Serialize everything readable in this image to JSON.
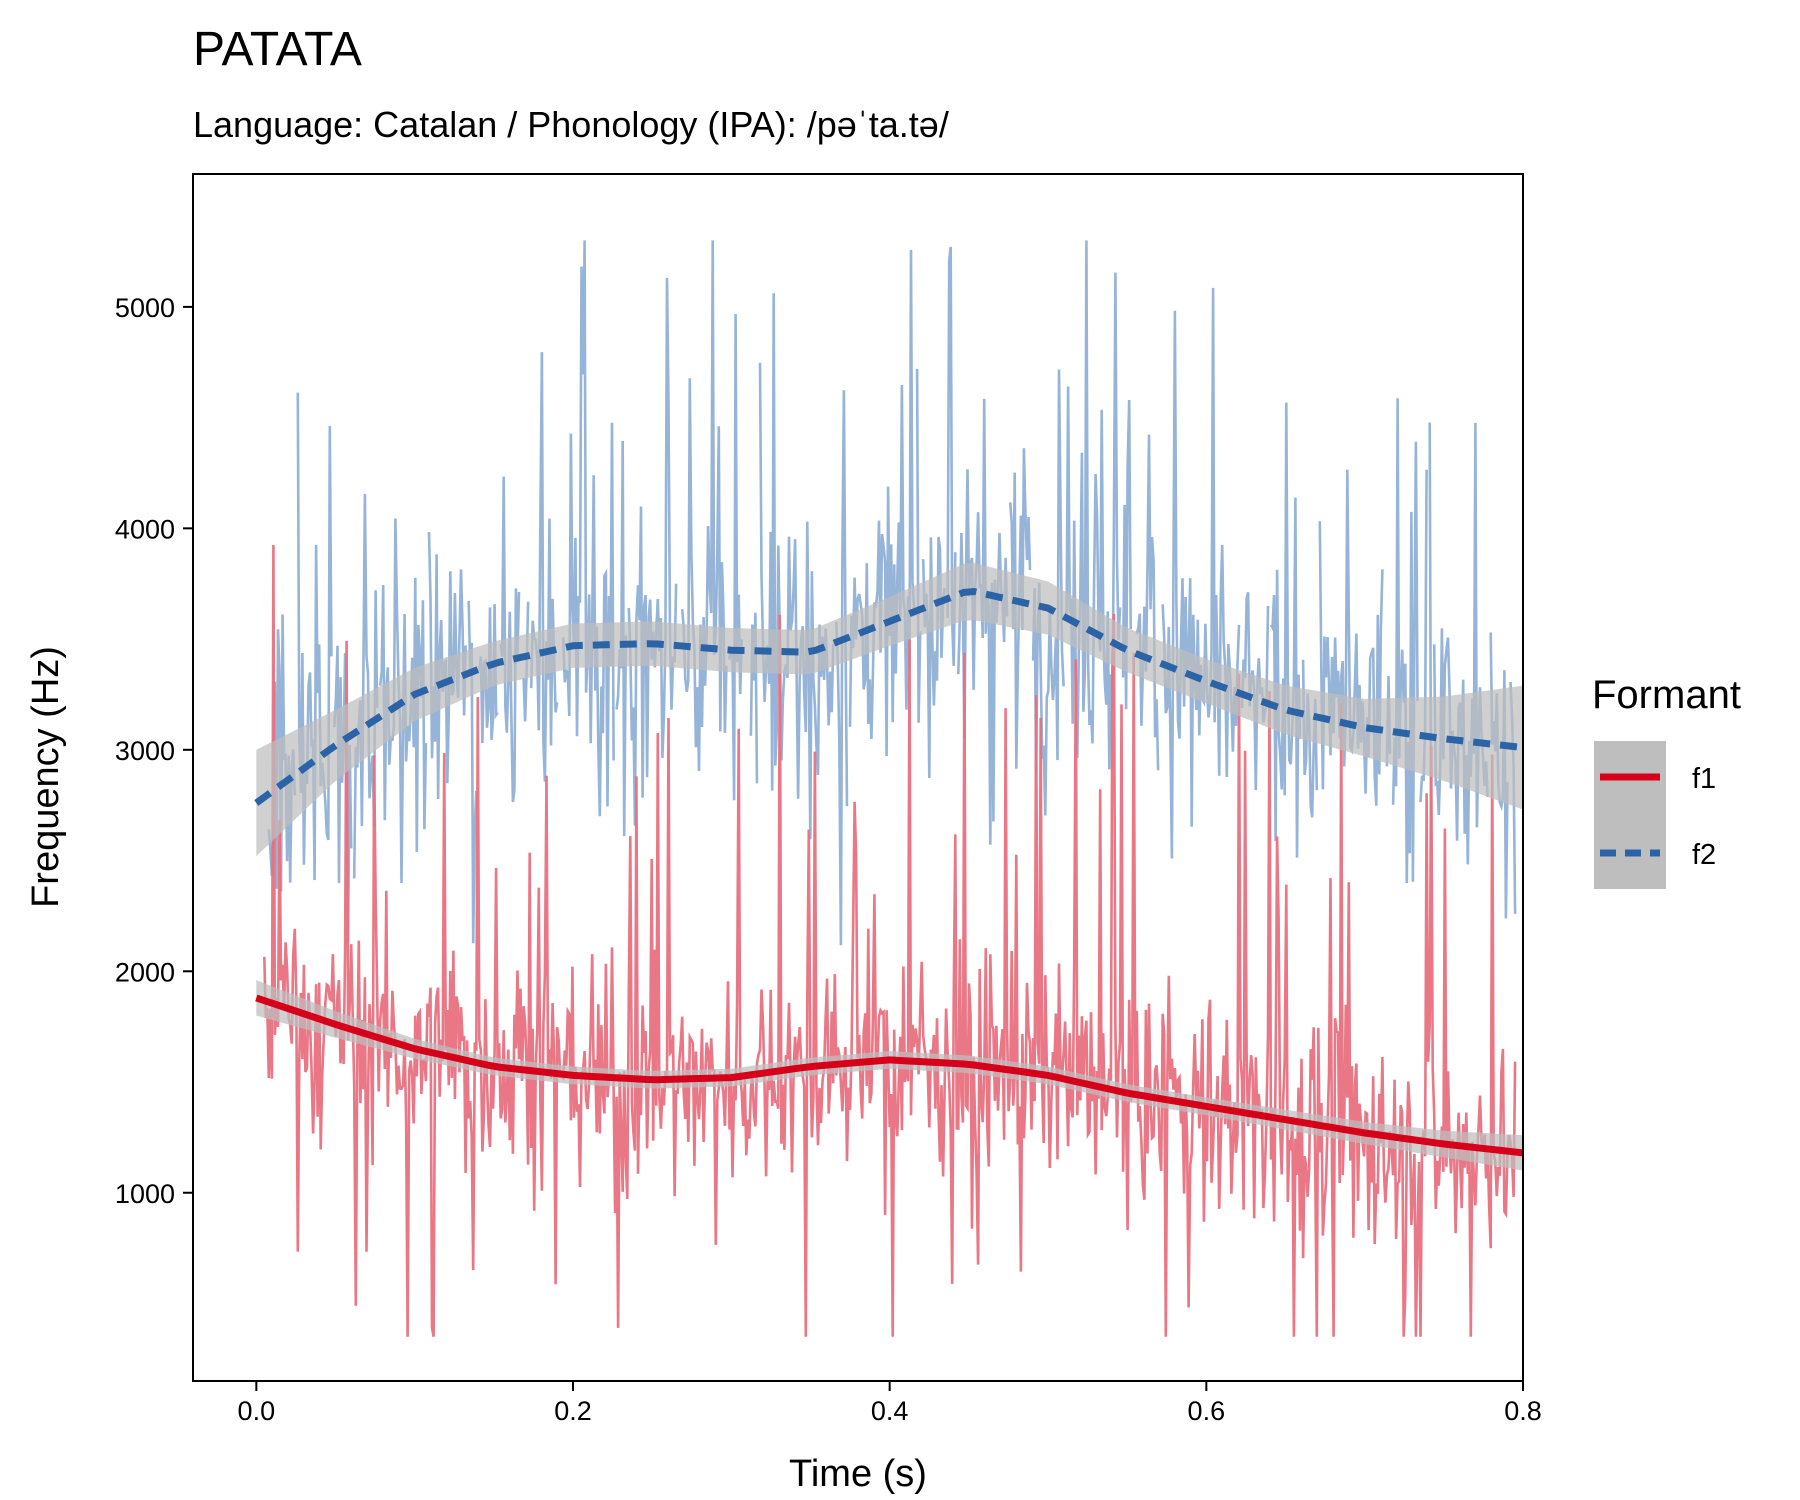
{
  "chart_data": {
    "type": "line",
    "title": "PATATA",
    "subtitle": "Language: Catalan / Phonology (IPA): /pəˈta.tə/",
    "xlabel": "Time (s)",
    "ylabel": "Frequency (Hz)",
    "xlim": [
      -0.04,
      0.8
    ],
    "ylim": [
      150,
      5600
    ],
    "xticks": [
      0.0,
      0.2,
      0.4,
      0.6,
      0.8
    ],
    "xtick_labels": [
      "0.0",
      "0.2",
      "0.4",
      "0.6",
      "0.8"
    ],
    "yticks": [
      1000,
      2000,
      3000,
      4000,
      5000
    ],
    "ytick_labels": [
      "1000",
      "2000",
      "3000",
      "4000",
      "5000"
    ],
    "grid": false,
    "legend": {
      "title": "Formant",
      "position": "right"
    },
    "colors": {
      "f1_raw": "#E8707E",
      "f2_raw": "#8FB0D6",
      "f1_smooth": "#D7001A",
      "f2_smooth": "#2B63A7",
      "ribbon": "#BEBEBE"
    },
    "series": [
      {
        "name": "f1",
        "style": "solid",
        "raw_summary": "noisy per-frame F1 track roughly 350-4800 Hz, concentrated 900-2000 Hz",
        "smooth": {
          "x": [
            0.0,
            0.05,
            0.1,
            0.15,
            0.2,
            0.25,
            0.3,
            0.35,
            0.4,
            0.45,
            0.5,
            0.55,
            0.6,
            0.65,
            0.7,
            0.75,
            0.8
          ],
          "y": [
            1880,
            1760,
            1650,
            1570,
            1530,
            1510,
            1520,
            1570,
            1600,
            1580,
            1530,
            1450,
            1390,
            1330,
            1270,
            1220,
            1180
          ],
          "se": [
            80,
            60,
            45,
            40,
            40,
            40,
            40,
            40,
            40,
            40,
            40,
            40,
            40,
            45,
            50,
            60,
            80
          ]
        }
      },
      {
        "name": "f2",
        "style": "dashed",
        "raw_summary": "noisy per-frame F2 track roughly 1500-5300 Hz, concentrated 2500-4200 Hz",
        "smooth": {
          "x": [
            0.0,
            0.05,
            0.1,
            0.15,
            0.2,
            0.25,
            0.3,
            0.35,
            0.4,
            0.45,
            0.5,
            0.55,
            0.6,
            0.65,
            0.7,
            0.75,
            0.8
          ],
          "y": [
            2760,
            3020,
            3250,
            3390,
            3470,
            3480,
            3450,
            3440,
            3580,
            3720,
            3640,
            3450,
            3310,
            3180,
            3100,
            3050,
            3010
          ],
          "se": [
            240,
            160,
            120,
            100,
            100,
            100,
            100,
            100,
            110,
            130,
            120,
            100,
            100,
            110,
            130,
            190,
            280
          ]
        }
      }
    ]
  }
}
